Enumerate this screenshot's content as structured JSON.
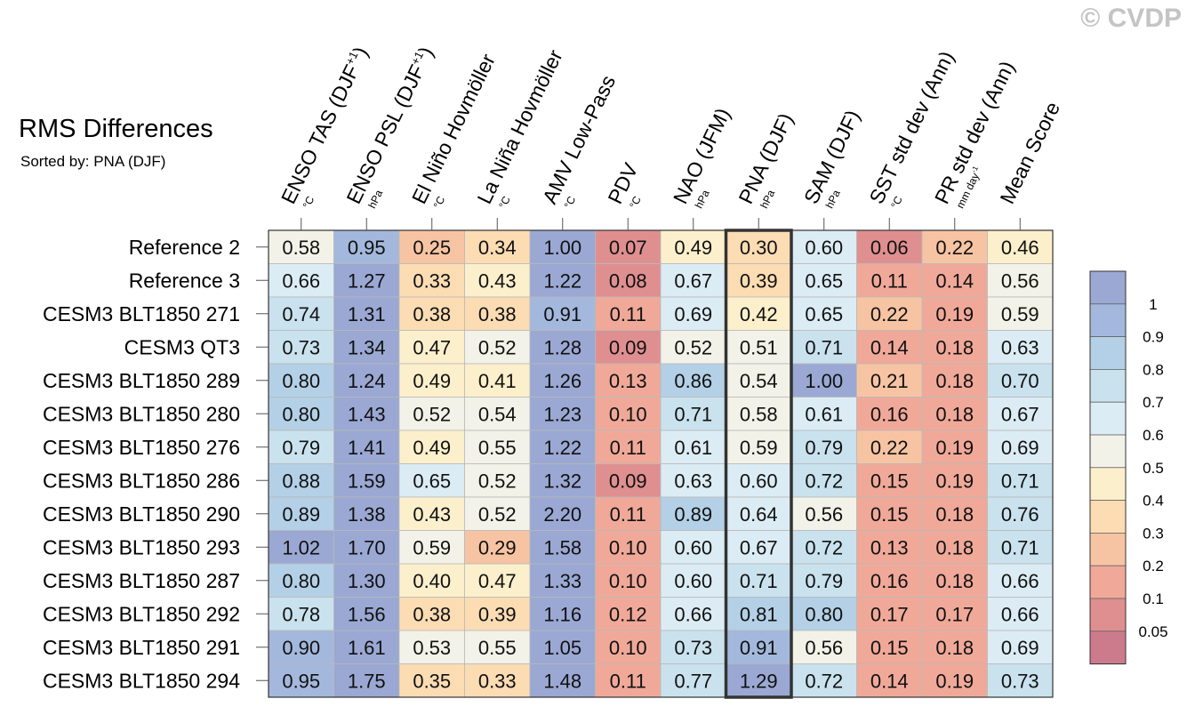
{
  "watermark": "© CVDP",
  "title": "RMS Differences",
  "subtitle": "Sorted by: PNA (DJF)",
  "chart_data": {
    "type": "heatmap",
    "title": "RMS Differences",
    "subtitle": "Sorted by: PNA (DJF)",
    "highlighted_column": "PNA (DJF)",
    "columns": [
      {
        "label": "ENSO TAS (DJF",
        "sup": "+1",
        "close": ")",
        "unit": "°C"
      },
      {
        "label": "ENSO PSL (DJF",
        "sup": "+1",
        "close": ")",
        "unit": "hPa"
      },
      {
        "label": "El Niño Hovmöller",
        "unit": "°C"
      },
      {
        "label": "La Niña Hovmöller",
        "unit": "°C"
      },
      {
        "label": "AMV Low-Pass",
        "unit": "°C"
      },
      {
        "label": "PDV",
        "unit": "°C"
      },
      {
        "label": "NAO (JFM)",
        "unit": "hPa"
      },
      {
        "label": "PNA (DJF)",
        "unit": "hPa"
      },
      {
        "label": "SAM (DJF)",
        "unit": "hPa"
      },
      {
        "label": "SST std dev (Ann)",
        "unit": "°C"
      },
      {
        "label": "PR std dev (Ann)",
        "unit": "mm day",
        "unit_sup": "-1"
      },
      {
        "label": "Mean Score",
        "unit": ""
      }
    ],
    "rows": [
      {
        "name": "Reference 2",
        "values": [
          0.58,
          0.95,
          0.25,
          0.34,
          1.0,
          0.07,
          0.49,
          0.3,
          0.6,
          0.06,
          0.22,
          0.46
        ]
      },
      {
        "name": "Reference 3",
        "values": [
          0.66,
          1.27,
          0.33,
          0.43,
          1.22,
          0.08,
          0.67,
          0.39,
          0.65,
          0.11,
          0.14,
          0.56
        ]
      },
      {
        "name": "CESM3 BLT1850 271",
        "values": [
          0.74,
          1.31,
          0.38,
          0.38,
          0.91,
          0.11,
          0.69,
          0.42,
          0.65,
          0.22,
          0.19,
          0.59
        ]
      },
      {
        "name": "CESM3 QT3",
        "values": [
          0.73,
          1.34,
          0.47,
          0.52,
          1.28,
          0.09,
          0.52,
          0.51,
          0.71,
          0.14,
          0.18,
          0.63
        ]
      },
      {
        "name": "CESM3 BLT1850 289",
        "values": [
          0.8,
          1.24,
          0.49,
          0.41,
          1.26,
          0.13,
          0.86,
          0.54,
          1.0,
          0.21,
          0.18,
          0.7
        ]
      },
      {
        "name": "CESM3 BLT1850 280",
        "values": [
          0.8,
          1.43,
          0.52,
          0.54,
          1.23,
          0.1,
          0.71,
          0.58,
          0.61,
          0.16,
          0.18,
          0.67
        ]
      },
      {
        "name": "CESM3 BLT1850 276",
        "values": [
          0.79,
          1.41,
          0.49,
          0.55,
          1.22,
          0.11,
          0.61,
          0.59,
          0.79,
          0.22,
          0.19,
          0.69
        ]
      },
      {
        "name": "CESM3 BLT1850 286",
        "values": [
          0.88,
          1.59,
          0.65,
          0.52,
          1.32,
          0.09,
          0.63,
          0.6,
          0.72,
          0.15,
          0.19,
          0.71
        ]
      },
      {
        "name": "CESM3 BLT1850 290",
        "values": [
          0.89,
          1.38,
          0.43,
          0.52,
          2.2,
          0.11,
          0.89,
          0.64,
          0.56,
          0.15,
          0.18,
          0.76
        ]
      },
      {
        "name": "CESM3 BLT1850 293",
        "values": [
          1.02,
          1.7,
          0.59,
          0.29,
          1.58,
          0.1,
          0.6,
          0.67,
          0.72,
          0.13,
          0.18,
          0.71
        ]
      },
      {
        "name": "CESM3 BLT1850 287",
        "values": [
          0.8,
          1.3,
          0.4,
          0.47,
          1.33,
          0.1,
          0.6,
          0.71,
          0.79,
          0.16,
          0.18,
          0.66
        ]
      },
      {
        "name": "CESM3 BLT1850 292",
        "values": [
          0.78,
          1.56,
          0.38,
          0.39,
          1.16,
          0.12,
          0.66,
          0.81,
          0.8,
          0.17,
          0.17,
          0.66
        ]
      },
      {
        "name": "CESM3 BLT1850 291",
        "values": [
          0.9,
          1.61,
          0.53,
          0.55,
          1.05,
          0.1,
          0.73,
          0.91,
          0.56,
          0.15,
          0.18,
          0.69
        ]
      },
      {
        "name": "CESM3 BLT1850 294",
        "values": [
          0.95,
          1.75,
          0.35,
          0.33,
          1.48,
          0.11,
          0.77,
          1.29,
          0.72,
          0.14,
          0.19,
          0.73
        ]
      }
    ],
    "colorbar": {
      "boundaries": [
        "0.05",
        "0.1",
        "0.2",
        "0.3",
        "0.4",
        "0.5",
        "0.6",
        "0.7",
        "0.8",
        "0.9",
        "1"
      ],
      "colors": [
        "#cc7b8d",
        "#df8f90",
        "#f0a999",
        "#f7c4a3",
        "#fbdcb3",
        "#fcefcb",
        "#f2f2e8",
        "#dcecf4",
        "#c9e2ee",
        "#b3d0e6",
        "#a3b8dc",
        "#9aa8d3"
      ]
    }
  }
}
